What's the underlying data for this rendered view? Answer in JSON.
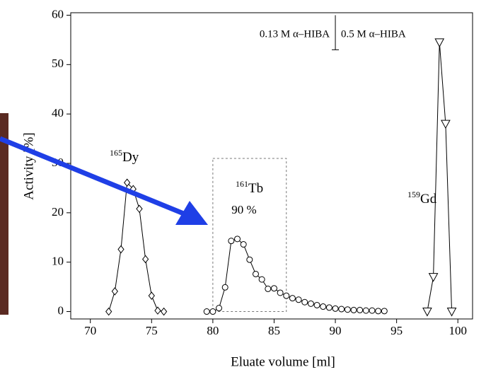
{
  "chart_data": {
    "type": "line",
    "x_label": "Eluate volume [ml]",
    "y_label": "Activity [%]",
    "xlim": [
      68.4,
      101.2
    ],
    "ylim": [
      -1.5,
      60.5
    ],
    "xticks": [
      70,
      75,
      80,
      85,
      90,
      95,
      100
    ],
    "yticks": [
      0,
      10,
      20,
      30,
      40,
      50,
      60
    ],
    "series": [
      {
        "symbol": "Dy",
        "mass_number": "165",
        "marker": "diamond",
        "color": "#000000",
        "x": [
          71.5,
          72,
          72.5,
          73,
          73.5,
          74,
          74.5,
          75,
          75.5,
          76
        ],
        "values": [
          0,
          4.1,
          12.6,
          26.1,
          24.8,
          20.8,
          10.6,
          3.2,
          0.2,
          0
        ]
      },
      {
        "symbol": "Tb",
        "mass_number": "161",
        "marker": "circle",
        "color": "#000000",
        "yield_label": "90 %",
        "x": [
          79.5,
          80,
          80.5,
          81,
          81.5,
          82,
          82.5,
          83,
          83.5,
          84,
          84.5,
          85,
          85.5,
          86,
          86.5,
          87,
          87.5,
          88,
          88.5,
          89,
          89.5,
          90,
          90.5,
          91,
          91.5,
          92,
          92.5,
          93,
          93.5,
          94
        ],
        "values": [
          0,
          0,
          0.7,
          4.9,
          14.3,
          14.7,
          13.6,
          10.5,
          7.6,
          6.5,
          4.6,
          4.7,
          3.8,
          3.2,
          2.7,
          2.4,
          1.9,
          1.6,
          1.3,
          1.0,
          0.8,
          0.6,
          0.5,
          0.4,
          0.3,
          0.3,
          0.2,
          0.2,
          0.1,
          0.1
        ]
      },
      {
        "symbol": "Gd",
        "mass_number": "159",
        "marker": "triangle-down",
        "color": "#000000",
        "x": [
          97.5,
          98,
          98.5,
          99,
          99.5
        ],
        "values": [
          0,
          7,
          54.5,
          38,
          0
        ]
      }
    ],
    "highlight_box": {
      "x": [
        80,
        86
      ],
      "y": [
        0,
        31
      ]
    },
    "eluent_change": {
      "x": 90,
      "y": [
        53,
        60
      ],
      "before": "0.13 M α–HIBA",
      "after": "0.5 M α–HIBA"
    }
  }
}
